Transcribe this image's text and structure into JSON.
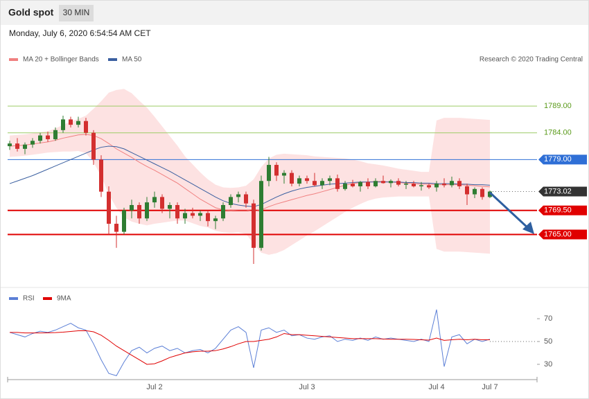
{
  "header": {
    "title": "Gold spot",
    "interval": "30 MIN"
  },
  "timestamp": "Monday, July 6, 2020 6:54:54 AM CET",
  "credit": "Research © 2020 Trading Central",
  "chart_data": [
    {
      "type": "candlestick",
      "ylim": [
        1756,
        1796
      ],
      "up_color": "#2e7d32",
      "down_color": "#d32f2f",
      "ohlc": [
        [
          1781.5,
          1782.5,
          1780.8,
          1782.0
        ],
        [
          1782.0,
          1783.0,
          1780.5,
          1781.0
        ],
        [
          1781.0,
          1782.2,
          1780.0,
          1781.8
        ],
        [
          1781.8,
          1783.0,
          1781.2,
          1782.5
        ],
        [
          1782.5,
          1784.0,
          1782.0,
          1783.5
        ],
        [
          1783.5,
          1784.2,
          1782.3,
          1782.8
        ],
        [
          1782.8,
          1785.0,
          1782.5,
          1784.5
        ],
        [
          1784.5,
          1787.2,
          1784.0,
          1786.5
        ],
        [
          1786.5,
          1787.0,
          1785.0,
          1785.5
        ],
        [
          1785.5,
          1787.0,
          1785.0,
          1786.2
        ],
        [
          1786.2,
          1786.8,
          1783.5,
          1784.0
        ],
        [
          1784.0,
          1784.5,
          1778.0,
          1779.0
        ],
        [
          1779.0,
          1779.8,
          1772.0,
          1773.0
        ],
        [
          1773.0,
          1774.0,
          1765.0,
          1767.0
        ],
        [
          1767.0,
          1768.5,
          1762.5,
          1765.5
        ],
        [
          1765.5,
          1770.0,
          1765.0,
          1769.5
        ],
        [
          1769.5,
          1771.5,
          1768.0,
          1770.5
        ],
        [
          1770.5,
          1771.0,
          1767.0,
          1768.0
        ],
        [
          1768.0,
          1772.0,
          1767.5,
          1771.0
        ],
        [
          1771.0,
          1773.0,
          1770.0,
          1772.0
        ],
        [
          1772.0,
          1772.5,
          1769.0,
          1769.8
        ],
        [
          1769.8,
          1771.0,
          1768.0,
          1770.5
        ],
        [
          1770.5,
          1771.0,
          1767.0,
          1768.0
        ],
        [
          1768.0,
          1769.8,
          1767.0,
          1769.0
        ],
        [
          1769.0,
          1770.0,
          1768.0,
          1768.5
        ],
        [
          1768.5,
          1769.5,
          1767.5,
          1769.0
        ],
        [
          1769.0,
          1769.5,
          1766.5,
          1767.5
        ],
        [
          1767.5,
          1768.5,
          1766.0,
          1768.0
        ],
        [
          1768.0,
          1771.0,
          1767.5,
          1770.5
        ],
        [
          1770.5,
          1772.5,
          1770.0,
          1772.0
        ],
        [
          1772.0,
          1773.0,
          1771.0,
          1772.5
        ],
        [
          1772.5,
          1773.0,
          1770.0,
          1770.8
        ],
        [
          1770.8,
          1771.5,
          1759.5,
          1762.5
        ],
        [
          1762.5,
          1776.0,
          1762.0,
          1775.0
        ],
        [
          1775.0,
          1779.5,
          1774.0,
          1778.0
        ],
        [
          1778.0,
          1778.5,
          1775.0,
          1776.0
        ],
        [
          1776.0,
          1777.0,
          1774.5,
          1776.5
        ],
        [
          1776.5,
          1777.0,
          1774.0,
          1774.5
        ],
        [
          1774.5,
          1776.0,
          1774.0,
          1775.5
        ],
        [
          1775.5,
          1776.0,
          1774.5,
          1775.0
        ],
        [
          1775.0,
          1776.5,
          1774.0,
          1774.2
        ],
        [
          1774.2,
          1775.5,
          1773.5,
          1775.0
        ],
        [
          1775.0,
          1776.0,
          1774.2,
          1775.5
        ],
        [
          1775.5,
          1776.2,
          1773.0,
          1773.5
        ],
        [
          1773.5,
          1775.0,
          1773.2,
          1774.5
        ],
        [
          1774.5,
          1775.2,
          1773.8,
          1774.0
        ],
        [
          1774.0,
          1775.0,
          1773.0,
          1774.8
        ],
        [
          1774.8,
          1775.5,
          1773.5,
          1774.0
        ],
        [
          1774.0,
          1775.5,
          1773.8,
          1775.0
        ],
        [
          1775.0,
          1776.0,
          1774.5,
          1774.6
        ],
        [
          1774.6,
          1775.3,
          1773.8,
          1775.0
        ],
        [
          1775.0,
          1775.5,
          1774.0,
          1774.3
        ],
        [
          1774.3,
          1775.0,
          1773.5,
          1774.5
        ],
        [
          1774.5,
          1775.0,
          1773.8,
          1774.0
        ],
        [
          1774.0,
          1774.8,
          1773.2,
          1774.2
        ],
        [
          1774.2,
          1774.5,
          1773.5,
          1773.8
        ],
        [
          1773.8,
          1775.0,
          1773.0,
          1774.5
        ],
        [
          1774.5,
          1775.5,
          1773.8,
          1774.2
        ],
        [
          1774.2,
          1775.8,
          1773.8,
          1775.0
        ],
        [
          1775.0,
          1775.5,
          1773.5,
          1774.0
        ],
        [
          1774.0,
          1774.5,
          1770.5,
          1772.5
        ],
        [
          1772.5,
          1773.8,
          1771.8,
          1773.5
        ],
        [
          1773.5,
          1773.8,
          1771.5,
          1772.0
        ],
        [
          1772.0,
          1773.2,
          1771.8,
          1773.02
        ]
      ],
      "overlays": [
        {
          "name": "MA 20 + Bollinger Bands",
          "color": "#f08080",
          "band_color": "#fde2e2",
          "values": [
            1781.5,
            1781.6,
            1781.7,
            1781.9,
            1782.1,
            1782.3,
            1782.6,
            1783.0,
            1783.3,
            1783.6,
            1783.7,
            1783.5,
            1782.9,
            1782.0,
            1781.0,
            1780.2,
            1779.4,
            1778.5,
            1777.7,
            1777.0,
            1776.2,
            1775.4,
            1774.6,
            1773.6,
            1772.6,
            1771.6,
            1770.8,
            1770.0,
            1769.6,
            1769.5,
            1769.6,
            1769.6,
            1769.3,
            1769.6,
            1770.2,
            1770.7,
            1771.1,
            1771.5,
            1771.9,
            1772.3,
            1772.6,
            1773.0,
            1773.4,
            1773.8,
            1774.2,
            1774.5,
            1774.7,
            1774.8,
            1774.9,
            1774.9,
            1774.8,
            1774.7,
            1774.6,
            1774.5,
            1774.4,
            1774.4,
            1774.3,
            1774.3,
            1774.3,
            1774.3,
            1774.2,
            1774.1,
            1774.0,
            1773.9
          ],
          "upper": [
            1783.5,
            1783.6,
            1783.7,
            1783.9,
            1784.1,
            1784.3,
            1784.8,
            1785.5,
            1786.1,
            1786.6,
            1787.2,
            1788.5,
            1789.9,
            1791.5,
            1792.0,
            1792.2,
            1791.4,
            1790.0,
            1788.7,
            1787.0,
            1785.2,
            1783.4,
            1781.6,
            1779.6,
            1778.1,
            1776.6,
            1775.3,
            1774.3,
            1773.8,
            1773.7,
            1773.8,
            1774.1,
            1775.3,
            1777.6,
            1779.2,
            1779.9,
            1780.1,
            1780.0,
            1779.9,
            1779.8,
            1779.6,
            1779.5,
            1779.4,
            1779.3,
            1779.2,
            1779.0,
            1778.7,
            1778.3,
            1778.1,
            1777.9,
            1777.6,
            1777.3,
            1777.1,
            1776.9,
            1776.7,
            1776.7,
            1786.3,
            1786.8,
            1786.8,
            1786.8,
            1786.7,
            1786.6,
            1786.5,
            1786.4
          ],
          "lower": [
            1779.5,
            1779.6,
            1779.7,
            1779.9,
            1780.1,
            1780.3,
            1780.4,
            1780.5,
            1780.5,
            1780.6,
            1780.2,
            1778.5,
            1775.9,
            1772.5,
            1770.0,
            1768.2,
            1767.4,
            1767.0,
            1766.7,
            1767.0,
            1767.2,
            1767.4,
            1767.6,
            1767.6,
            1767.1,
            1766.6,
            1766.3,
            1765.7,
            1765.4,
            1765.3,
            1765.4,
            1765.1,
            1763.3,
            1761.6,
            1761.2,
            1761.5,
            1762.1,
            1763.0,
            1763.9,
            1764.8,
            1765.6,
            1766.5,
            1767.4,
            1768.3,
            1769.2,
            1770.0,
            1770.7,
            1771.3,
            1771.7,
            1771.9,
            1772.0,
            1772.1,
            1772.1,
            1772.1,
            1772.1,
            1772.1,
            1762.3,
            1761.8,
            1761.8,
            1761.8,
            1761.7,
            1761.6,
            1761.5,
            1761.4
          ]
        },
        {
          "name": "MA 50",
          "color": "#3a5fa0",
          "values": [
            1774.5,
            1775.0,
            1775.5,
            1776.0,
            1776.6,
            1777.2,
            1777.8,
            1778.4,
            1779.0,
            1779.6,
            1780.2,
            1780.8,
            1781.3,
            1781.5,
            1781.4,
            1781.0,
            1780.3,
            1779.6,
            1778.9,
            1778.2,
            1777.5,
            1776.8,
            1776.0,
            1775.2,
            1774.4,
            1773.6,
            1772.8,
            1772.0,
            1771.3,
            1770.8,
            1770.5,
            1770.3,
            1770.2,
            1770.6,
            1771.3,
            1772.0,
            1772.6,
            1773.1,
            1773.5,
            1773.8,
            1774.0,
            1774.2,
            1774.4,
            1774.5,
            1774.6,
            1774.7,
            1774.8,
            1774.8,
            1774.8,
            1774.8,
            1774.8,
            1774.8,
            1774.7,
            1774.7,
            1774.6,
            1774.6,
            1774.5,
            1774.5,
            1774.5,
            1774.4,
            1774.4,
            1774.3,
            1774.3,
            1774.2
          ]
        }
      ],
      "levels": [
        {
          "value": 1789,
          "label": "1789.00",
          "color": "#9ccc65",
          "width": 1,
          "tag": false
        },
        {
          "value": 1784,
          "label": "1784.00",
          "color": "#9ccc65",
          "width": 1,
          "tag": false
        },
        {
          "value": 1779,
          "label": "1779.00",
          "color": "#2f6fd6",
          "width": 1,
          "tag": true
        },
        {
          "value": 1773.02,
          "label": "1773.02",
          "color": "#333333",
          "width": 1,
          "tag": true,
          "dashed": true
        },
        {
          "value": 1769.5,
          "label": "1769.50",
          "color": "#e00000",
          "width": 2,
          "tag": true
        },
        {
          "value": 1765,
          "label": "1765.00",
          "color": "#e00000",
          "width": 2,
          "tag": true
        }
      ]
    },
    {
      "type": "line",
      "ylim": [
        16,
        84
      ],
      "yticks": [
        30,
        50,
        70
      ],
      "categories": [
        null,
        null,
        null,
        null,
        null,
        null,
        null,
        null,
        null,
        null,
        null,
        null,
        null,
        null,
        null,
        null,
        null,
        null,
        null,
        "Jul 2",
        null,
        null,
        null,
        null,
        null,
        null,
        null,
        null,
        null,
        null,
        null,
        null,
        null,
        null,
        null,
        null,
        null,
        null,
        null,
        "Jul 3",
        null,
        null,
        null,
        null,
        null,
        null,
        null,
        null,
        null,
        null,
        null,
        null,
        null,
        null,
        null,
        null,
        "Jul 4",
        null,
        null,
        null,
        null,
        null,
        null,
        "Jul 7"
      ],
      "series": [
        {
          "name": "RSI",
          "color": "#5b7fd6",
          "values": [
            58,
            56,
            54,
            57,
            59,
            58,
            60,
            63,
            66,
            62,
            60,
            48,
            34,
            22,
            20,
            32,
            42,
            45,
            40,
            44,
            46,
            42,
            44,
            40,
            42,
            43,
            40,
            44,
            52,
            60,
            63,
            58,
            27,
            60,
            62,
            58,
            60,
            55,
            56,
            53,
            52,
            54,
            55,
            50,
            52,
            51,
            53,
            51,
            54,
            52,
            53,
            52,
            51,
            50,
            52,
            50,
            78,
            28,
            54,
            56,
            48,
            52,
            50,
            52
          ]
        },
        {
          "name": "9MA",
          "color": "#e00000",
          "values": [
            58,
            58,
            57.5,
            57.5,
            57.5,
            57.6,
            57.8,
            58.2,
            58.8,
            59.4,
            59.5,
            58.5,
            55.5,
            51,
            46,
            42,
            38,
            34,
            30,
            30.5,
            33,
            36,
            38,
            40,
            41,
            41.5,
            41.5,
            42,
            43.5,
            45.5,
            48,
            50,
            50,
            51,
            52,
            54,
            57,
            56,
            56,
            55.5,
            55,
            54.5,
            54,
            53.5,
            53,
            52.5,
            52.5,
            52.5,
            52.5,
            52.2,
            52,
            52,
            52,
            51.8,
            51.5,
            51.2,
            53,
            51,
            51.5,
            52,
            51.5,
            52,
            51.5,
            51.5
          ]
        }
      ]
    }
  ]
}
